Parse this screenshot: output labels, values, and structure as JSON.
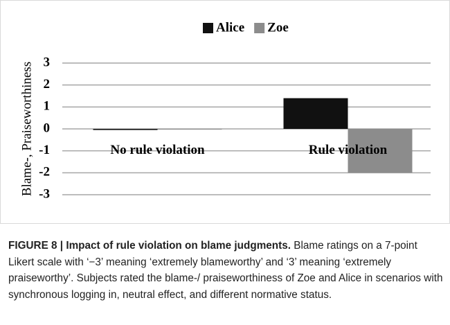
{
  "chart_data": {
    "type": "bar",
    "y_label": "Blame-, Praiseworthiness",
    "categories": [
      "No rule violation",
      "Rule violation"
    ],
    "series": [
      {
        "name": "Alice",
        "color": "#111111",
        "values": [
          -0.05,
          1.4
        ]
      },
      {
        "name": "Zoe",
        "color": "#8c8c8c",
        "values": [
          -0.03,
          -2.0
        ]
      }
    ],
    "ylim": [
      -3,
      3
    ],
    "yticks": [
      -3,
      -2,
      -1,
      0,
      1,
      2,
      3
    ],
    "grid": true,
    "legend": "top"
  },
  "caption": {
    "label": "FIGURE 8 | Impact of rule violation on blame judgments.",
    "text": "Blame ratings on a 7-point Likert scale with ‘−3’ meaning ‘extremely blameworthy’ and ‘3’ meaning ‘extremely praiseworthy’. Subjects rated the blame-/ praiseworthiness of Zoe and Alice in scenarios with synchronous logging in, neutral effect, and different normative status."
  }
}
